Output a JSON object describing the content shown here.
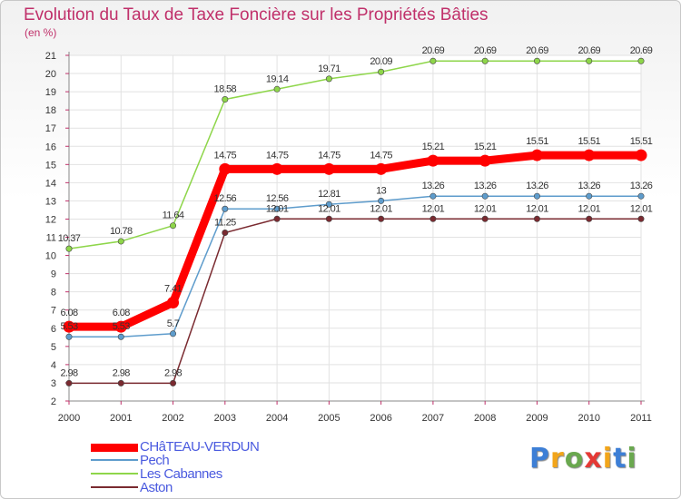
{
  "chart_data": {
    "type": "line",
    "title": "Evolution du Taux de Taxe Foncière sur les Propriétés Bâties",
    "ylabel": "(en %)",
    "xlabel": "",
    "x": [
      "2000",
      "2001",
      "2002",
      "2003",
      "2004",
      "2005",
      "2006",
      "2007",
      "2008",
      "2009",
      "2010",
      "2011"
    ],
    "ylim": [
      2,
      21
    ],
    "yticks": [
      "2",
      "3",
      "4",
      "5",
      "6",
      "7",
      "8",
      "9",
      "10",
      "11",
      "12",
      "13",
      "14",
      "15",
      "16",
      "17",
      "18",
      "19",
      "20",
      "21"
    ],
    "grid": true,
    "series": [
      {
        "name": "CHâTEAU-VERDUN",
        "color": "#ff0000",
        "values": [
          6.08,
          6.08,
          7.41,
          14.75,
          14.75,
          14.75,
          14.75,
          15.21,
          15.21,
          15.51,
          15.51,
          15.51
        ],
        "labels": [
          "6.08",
          "6.08",
          "7.41",
          "14.75",
          "14.75",
          "14.75",
          "14.75",
          "15.21",
          "15.21",
          "15.51",
          "15.51",
          "15.51"
        ]
      },
      {
        "name": "Pech",
        "color": "#5e9ccc",
        "values": [
          5.53,
          5.53,
          5.7,
          12.56,
          12.56,
          12.81,
          13,
          13.26,
          13.26,
          13.26,
          13.26,
          13.26
        ],
        "labels": [
          "5.53",
          "5.53",
          "5.7",
          "12.56",
          "12.56",
          "12.81",
          "13",
          "13.26",
          "13.26",
          "13.26",
          "13.26",
          "13.26"
        ]
      },
      {
        "name": "Les Cabannes",
        "color": "#8ed64a",
        "values": [
          10.37,
          10.78,
          11.64,
          18.58,
          19.14,
          19.71,
          20.09,
          20.69,
          20.69,
          20.69,
          20.69,
          20.69
        ],
        "labels": [
          "10.37",
          "10.78",
          "11.64",
          "18.58",
          "19.14",
          "19.71",
          "20.09",
          "20.69",
          "20.69",
          "20.69",
          "20.69",
          "20.69"
        ]
      },
      {
        "name": "Aston",
        "color": "#7a2a30",
        "values": [
          2.98,
          2.98,
          2.98,
          11.25,
          12.01,
          12.01,
          12.01,
          12.01,
          12.01,
          12.01,
          12.01,
          12.01
        ],
        "labels": [
          "2.98",
          "2.98",
          "2.98",
          "11.25",
          "12.01",
          "12.01",
          "12.01",
          "12.01",
          "12.01",
          "12.01",
          "12.01",
          "12.01"
        ]
      }
    ],
    "legend": {
      "position": "bottom-left"
    }
  },
  "logo": {
    "text": "Proxiti",
    "letter_colors": [
      "#3d7fd6",
      "#f2a51a",
      "#6aa84f",
      "#e53935",
      "#f2a51a",
      "#3d7fd6",
      "#6aa84f"
    ]
  }
}
